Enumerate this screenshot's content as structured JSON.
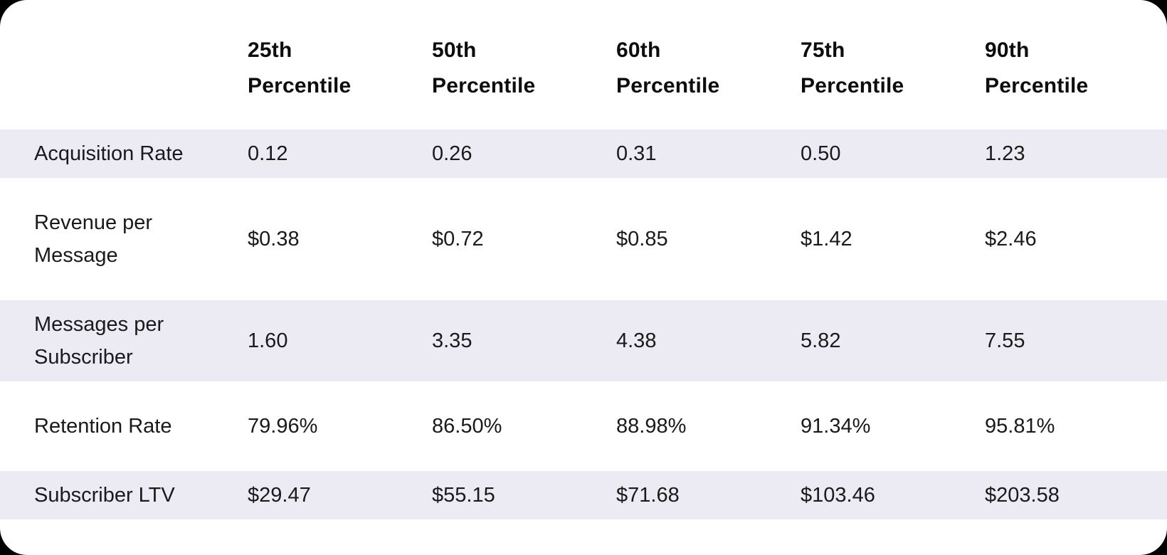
{
  "style": {
    "page_background": "#000000",
    "card_background": "#ffffff",
    "stripe_color": "#ecebf4",
    "header_text_color": "#0d0d0d",
    "body_text_color": "#1a1a1a"
  },
  "chart_data": {
    "type": "table",
    "header": {
      "row_label_column": "",
      "columns": [
        {
          "label": "25th Percentile",
          "line1": "25th",
          "line2": "Percentile"
        },
        {
          "label": "50th Percentile",
          "line1": "50th",
          "line2": "Percentile"
        },
        {
          "label": "60th Percentile",
          "line1": "60th",
          "line2": "Percentile"
        },
        {
          "label": "75th Percentile",
          "line1": "75th",
          "line2": "Percentile"
        },
        {
          "label": "90th Percentile",
          "line1": "90th",
          "line2": "Percentile"
        }
      ]
    },
    "rows": [
      {
        "label": "Acquisition Rate",
        "values": [
          "0.12",
          "0.26",
          "0.31",
          "0.50",
          "1.23"
        ]
      },
      {
        "label": "Revenue per Message",
        "values": [
          "$0.38",
          "$0.72",
          "$0.85",
          "$1.42",
          "$2.46"
        ]
      },
      {
        "label": "Messages per Subscriber",
        "values": [
          "1.60",
          "3.35",
          "4.38",
          "5.82",
          "7.55"
        ]
      },
      {
        "label": "Retention Rate",
        "values": [
          "79.96%",
          "86.50%",
          "88.98%",
          "91.34%",
          "95.81%"
        ]
      },
      {
        "label": "Subscriber LTV",
        "values": [
          "$29.47",
          "$55.15",
          "$71.68",
          "$103.46",
          "$203.58"
        ]
      }
    ],
    "layout": {
      "striped_row_indices": [
        0,
        2,
        4
      ],
      "grid": false,
      "legend": false
    }
  }
}
